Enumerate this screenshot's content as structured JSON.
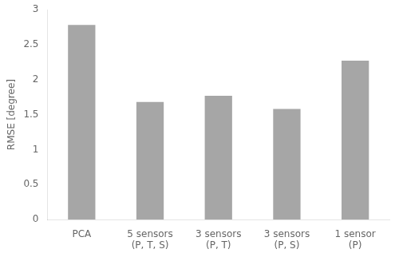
{
  "chart_data": {
    "type": "bar",
    "categories": [
      "PCA",
      "5 sensors\n(P, T, S)",
      "3 sensors\n(P, T)",
      "3 sensors\n(P, S)",
      "1 sensor\n(P)"
    ],
    "values": [
      2.78,
      1.68,
      1.77,
      1.58,
      2.27
    ],
    "color": "#a6a6a6",
    "ylabel": "RMSE [degree]",
    "ylim": [
      0,
      3
    ],
    "yticks": [
      0,
      0.5,
      1,
      1.5,
      2,
      2.5,
      3
    ],
    "grid": false
  }
}
